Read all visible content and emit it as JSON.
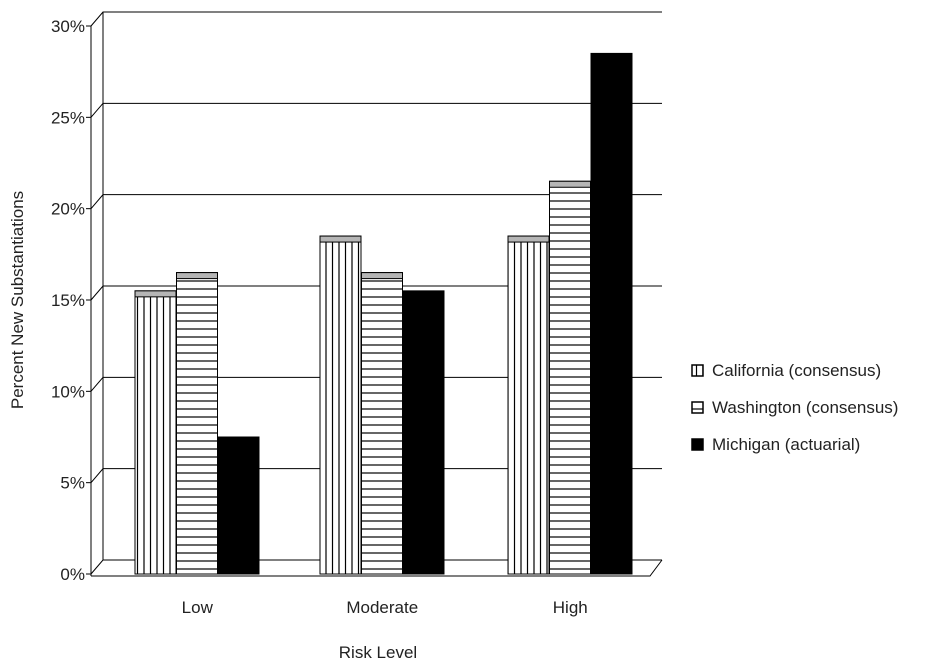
{
  "chart_data": {
    "type": "bar",
    "title": "",
    "xlabel": "Risk Level",
    "ylabel": "Percent New Substantiations",
    "categories": [
      "Low",
      "Moderate",
      "High"
    ],
    "series": [
      {
        "name": "California (consensus)",
        "values": [
          15.5,
          18.5,
          18.5
        ],
        "pattern": "vertical-lines",
        "color": "#ffffff"
      },
      {
        "name": "Washington (consensus)",
        "values": [
          16.5,
          16.5,
          21.5
        ],
        "pattern": "horizontal-lines",
        "color": "#ffffff"
      },
      {
        "name": "Michigan (actuarial)",
        "values": [
          7.5,
          15.5,
          28.5
        ],
        "pattern": "solid",
        "color": "#000000"
      }
    ],
    "ylim": [
      0,
      30
    ],
    "yticks": [
      0,
      5,
      10,
      15,
      20,
      25,
      30
    ],
    "ytick_labels": [
      "0%",
      "5%",
      "10%",
      "15%",
      "20%",
      "25%",
      "30%"
    ],
    "grid": true,
    "legend_position": "right"
  }
}
